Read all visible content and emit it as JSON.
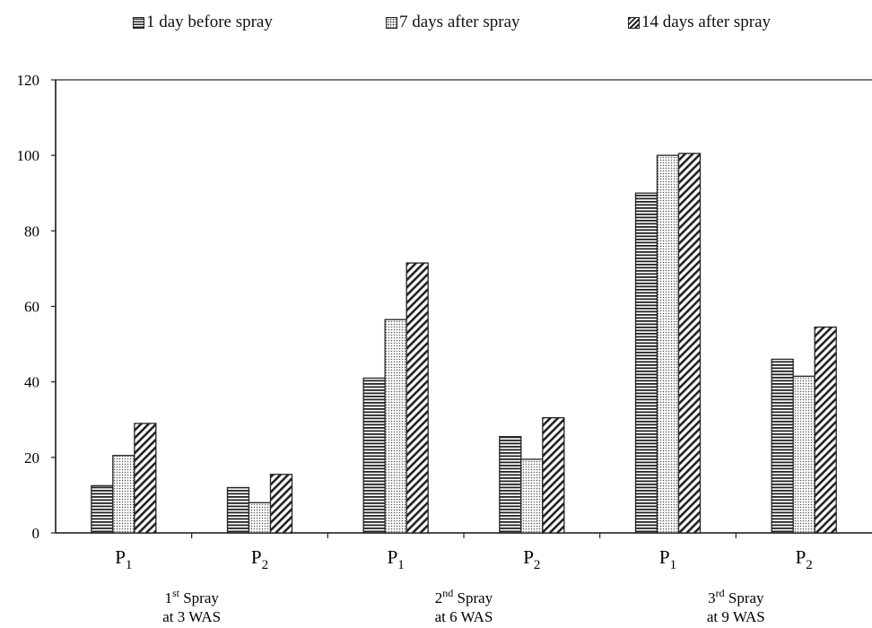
{
  "chart_data": {
    "type": "bar",
    "legend_position": "top",
    "grid": false,
    "ylim": [
      0,
      120
    ],
    "yticks": [
      "0",
      "20",
      "40",
      "60",
      "80",
      "100",
      "120"
    ],
    "groups": [
      {
        "line1_sup": "st",
        "line1_num": "1",
        "line1_text": "Spray",
        "line2": "at 3 WAS",
        "categories": [
          "P1",
          "P2"
        ]
      },
      {
        "line1_sup": "nd",
        "line1_num": "2",
        "line1_text": "Spray",
        "line2": "at 6 WAS",
        "categories": [
          "P1",
          "P2"
        ]
      },
      {
        "line1_sup": "rd",
        "line1_num": "3",
        "line1_text": "Spray",
        "line2": "at 9 WAS",
        "categories": [
          "P1",
          "P2"
        ]
      }
    ],
    "categories": [
      "P1",
      "P2",
      "P1",
      "P2",
      "P1",
      "P2"
    ],
    "series": [
      {
        "name": "1 day before spray",
        "pattern": "horizontal-lines",
        "values": [
          12.5,
          12,
          41,
          25.5,
          90,
          46
        ]
      },
      {
        "name": "7 days after spray",
        "pattern": "dots",
        "values": [
          20.5,
          8,
          56.5,
          19.5,
          100,
          41.5
        ]
      },
      {
        "name": "14 days after spray",
        "pattern": "diagonal-lines",
        "values": [
          29,
          15.5,
          71.5,
          30.5,
          100.5,
          54.5
        ]
      }
    ],
    "colors": {
      "ink": "#222222",
      "background": "#ffffff"
    }
  }
}
